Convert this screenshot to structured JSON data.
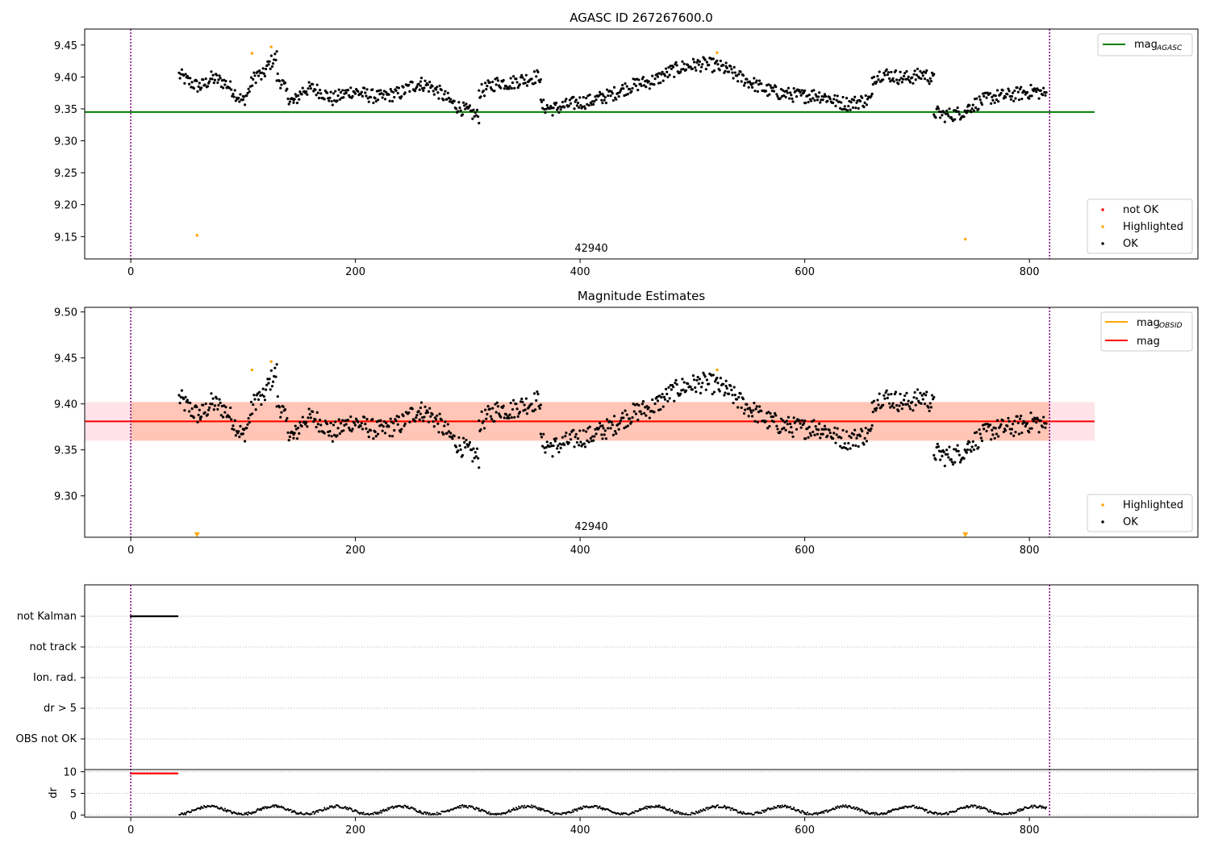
{
  "chart_data": [
    {
      "type": "scatter",
      "title": "AGASC ID 267267600.0",
      "xlim": [
        -41,
        950
      ],
      "ylim": [
        9.115,
        9.475
      ],
      "xticks": [
        0,
        200,
        400,
        600,
        800
      ],
      "yticks": [
        9.15,
        9.2,
        9.25,
        9.3,
        9.35,
        9.4,
        9.45
      ],
      "ytick_labels": [
        "9.15",
        "9.20",
        "9.25",
        "9.30",
        "9.35",
        "9.40",
        "9.45"
      ],
      "obsid_label": "42940",
      "obsid_bounds": [
        0,
        818
      ],
      "mag_agasc": 9.345,
      "mag_agasc_xrange": [
        -41,
        858
      ],
      "legend_top": [
        "mag",
        "AGASC"
      ],
      "legend_bottom": [
        "not OK",
        "Highlighted",
        "OK"
      ],
      "colors": {
        "ok": "#000000",
        "highlighted": "#ffa500",
        "not_ok": "#ff0000",
        "mag_agasc": "#008000",
        "bounds": "#800080"
      },
      "highlighted": [
        [
          59,
          9.152
        ],
        [
          108,
          9.437
        ],
        [
          125,
          9.447
        ],
        [
          522,
          9.438
        ],
        [
          743,
          9.146
        ]
      ],
      "ok_segments": [
        {
          "x0": 43,
          "x1": 62,
          "y": [
            9.403,
            9.4,
            9.395,
            9.392,
            9.389,
            9.386,
            9.385
          ]
        },
        {
          "x0": 62,
          "x1": 100,
          "y": [
            9.385,
            9.39,
            9.398,
            9.396,
            9.393,
            9.388,
            9.38,
            9.37,
            9.362
          ]
        },
        {
          "x0": 100,
          "x1": 130,
          "y": [
            9.362,
            9.375,
            9.395,
            9.405,
            9.4,
            9.415,
            9.425,
            9.432
          ]
        },
        {
          "x0": 130,
          "x1": 145,
          "y": [
            9.4,
            9.39,
            9.37,
            9.36
          ]
        },
        {
          "x0": 145,
          "x1": 258,
          "y": [
            9.36,
            9.38,
            9.382,
            9.375,
            9.365,
            9.372,
            9.378,
            9.374,
            9.37,
            9.368,
            9.372,
            9.375,
            9.385,
            9.39
          ]
        },
        {
          "x0": 258,
          "x1": 310,
          "y": [
            9.39,
            9.385,
            9.375,
            9.362,
            9.352,
            9.345,
            9.338
          ]
        },
        {
          "x0": 310,
          "x1": 365,
          "y": [
            9.375,
            9.385,
            9.392,
            9.39,
            9.395,
            9.398,
            9.402
          ]
        },
        {
          "x0": 365,
          "x1": 420,
          "y": [
            9.355,
            9.35,
            9.355,
            9.36,
            9.362,
            9.368
          ]
        },
        {
          "x0": 420,
          "x1": 470,
          "y": [
            9.368,
            9.372,
            9.38,
            9.385,
            9.39,
            9.392,
            9.398
          ]
        },
        {
          "x0": 470,
          "x1": 530,
          "y": [
            9.398,
            9.408,
            9.415,
            9.418,
            9.42,
            9.418,
            9.412
          ]
        },
        {
          "x0": 530,
          "x1": 600,
          "y": [
            9.412,
            9.4,
            9.39,
            9.38,
            9.375,
            9.372,
            9.37
          ]
        },
        {
          "x0": 600,
          "x1": 660,
          "y": [
            9.37,
            9.372,
            9.368,
            9.36,
            9.358,
            9.362,
            9.365
          ]
        },
        {
          "x0": 660,
          "x1": 715,
          "y": [
            9.398,
            9.405,
            9.402,
            9.398,
            9.4,
            9.405,
            9.395
          ]
        },
        {
          "x0": 715,
          "x1": 745,
          "y": [
            9.345,
            9.34,
            9.342,
            9.348
          ]
        },
        {
          "x0": 745,
          "x1": 815,
          "y": [
            9.352,
            9.36,
            9.368,
            9.37,
            9.372,
            9.375,
            9.378,
            9.372
          ]
        }
      ]
    },
    {
      "type": "scatter",
      "title": "Magnitude Estimates",
      "xlim": [
        -41,
        950
      ],
      "ylim": [
        9.255,
        9.505
      ],
      "xticks": [
        0,
        200,
        400,
        600,
        800
      ],
      "yticks": [
        9.3,
        9.35,
        9.4,
        9.45,
        9.5
      ],
      "ytick_labels": [
        "9.30",
        "9.35",
        "9.40",
        "9.45",
        "9.50"
      ],
      "obsid_label": "42940",
      "obsid_bounds": [
        0,
        818
      ],
      "mag": 9.381,
      "mag_band": [
        9.36,
        9.402
      ],
      "mag_obsid_band": [
        9.36,
        9.402
      ],
      "band_xrange": [
        -41,
        858
      ],
      "legend_top": [
        [
          "mag",
          "OBSID"
        ],
        [
          "mag",
          ""
        ]
      ],
      "legend_bottom": [
        "Highlighted",
        "OK"
      ],
      "colors": {
        "ok": "#000000",
        "highlighted": "#ffa500",
        "mag": "#ff0000",
        "mag_obsid": "#ffa500",
        "band_mag": "#ffc0cb",
        "band_obsid": "#ffa07a",
        "bounds": "#800080"
      },
      "highlighted": [
        [
          108,
          9.437
        ],
        [
          125,
          9.446
        ],
        [
          522,
          9.437
        ]
      ],
      "offscale_below": [
        59,
        743
      ]
    },
    {
      "type": "scatter",
      "xlim": [
        -41,
        950
      ],
      "categories": [
        "not Kalman",
        "not track",
        "Ion. rad.",
        "dr > 5",
        "OBS not OK"
      ],
      "flag_ranges": {
        "not Kalman": [
          0,
          42
        ]
      },
      "dr_ylabel": "dr",
      "dr_yticks": [
        0,
        5,
        10
      ],
      "dr_ylim": [
        -0.5,
        10.5
      ],
      "dr_flagged": {
        "x": [
          0,
          42
        ],
        "y": 9.6
      },
      "xticks": [
        0,
        200,
        400,
        600,
        800
      ],
      "obsid_bounds": [
        0,
        818
      ]
    }
  ]
}
